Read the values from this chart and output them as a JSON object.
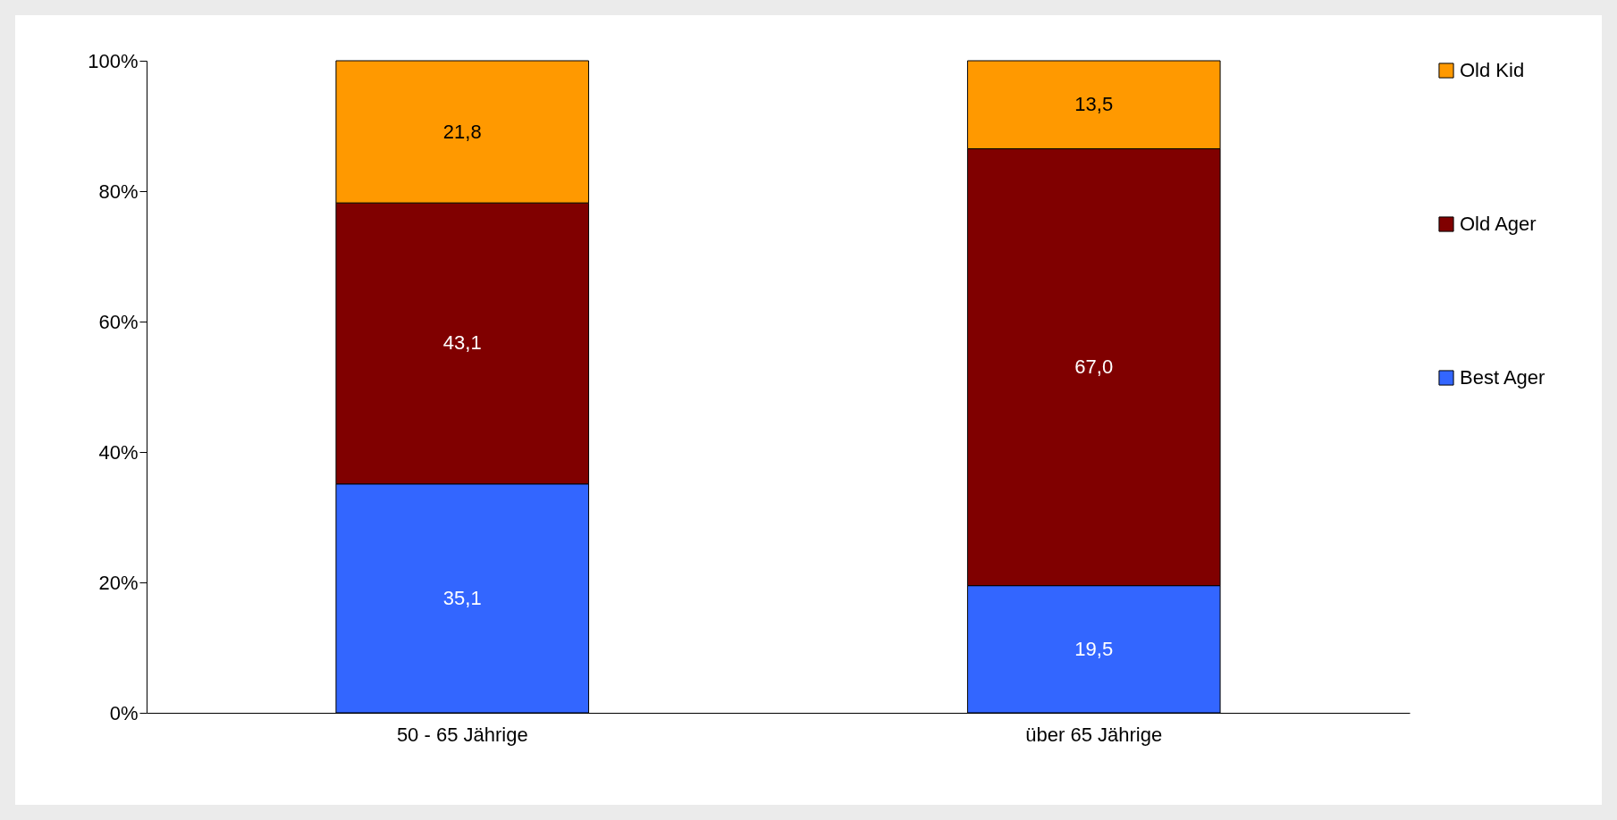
{
  "chart_data": {
    "type": "bar",
    "stacked": true,
    "categories": [
      "50 - 65 Jährige",
      "über 65 Jährige"
    ],
    "series": [
      {
        "name": "Best Ager",
        "color": "#3366ff",
        "values": [
          35.1,
          19.5
        ],
        "value_labels": [
          "35,1",
          "19,5"
        ]
      },
      {
        "name": "Old Ager",
        "color": "#800000",
        "values": [
          43.1,
          67.0
        ],
        "value_labels": [
          "43,1",
          "67,0"
        ]
      },
      {
        "name": "Old Kid",
        "color": "#ff9900",
        "values": [
          21.8,
          13.5
        ],
        "value_labels": [
          "21,8",
          "13,5"
        ]
      }
    ],
    "ylim": [
      0,
      100
    ],
    "yticks": [
      {
        "value": 0,
        "label": "0%"
      },
      {
        "value": 20,
        "label": "20%"
      },
      {
        "value": 40,
        "label": "40%"
      },
      {
        "value": 60,
        "label": "60%"
      },
      {
        "value": 80,
        "label": "80%"
      },
      {
        "value": 100,
        "label": "100%"
      }
    ],
    "grid": false,
    "legend": "right"
  }
}
